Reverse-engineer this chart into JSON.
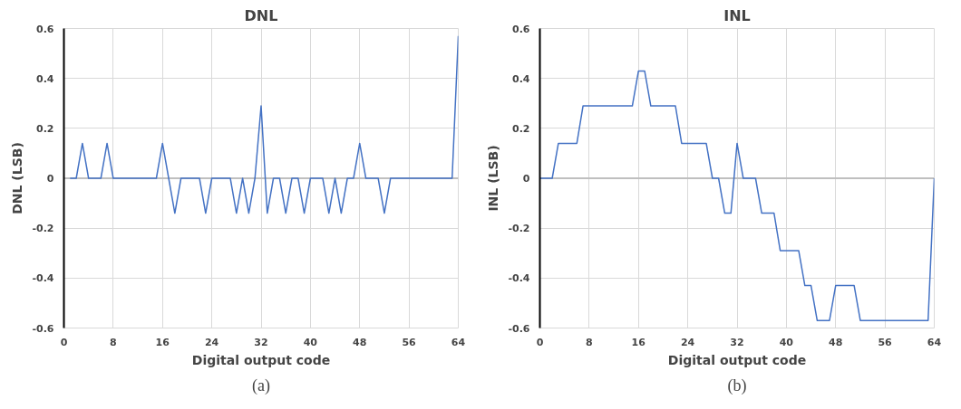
{
  "chart_data": [
    {
      "type": "line",
      "title": "DNL",
      "xlabel": "Digital output code",
      "ylabel": "DNL (LSB)",
      "annotations": [
        "(a)"
      ],
      "x": [
        1,
        2,
        3,
        4,
        5,
        6,
        7,
        8,
        9,
        10,
        11,
        12,
        13,
        14,
        15,
        16,
        17,
        18,
        19,
        20,
        21,
        22,
        23,
        24,
        25,
        26,
        27,
        28,
        29,
        30,
        31,
        32,
        33,
        34,
        35,
        36,
        37,
        38,
        39,
        40,
        41,
        42,
        43,
        44,
        45,
        46,
        47,
        48,
        49,
        50,
        51,
        52,
        53,
        54,
        55,
        56,
        57,
        58,
        59,
        60,
        61,
        62,
        63,
        64
      ],
      "series": [
        {
          "color": "#4472c4",
          "values": [
            0,
            0,
            0.14,
            0,
            0,
            0,
            0.14,
            0,
            0,
            0,
            0,
            0,
            0,
            0,
            0,
            0.14,
            0,
            -0.14,
            0,
            0,
            0,
            0,
            -0.14,
            0,
            0,
            0,
            0,
            -0.14,
            0,
            -0.14,
            0,
            0.29,
            -0.14,
            0,
            0,
            -0.14,
            0,
            0,
            -0.14,
            0,
            0,
            0,
            -0.14,
            0,
            -0.14,
            0,
            0,
            0.14,
            0,
            0,
            0,
            -0.14,
            0,
            0,
            0,
            0,
            0,
            0,
            0,
            0,
            0,
            0,
            0,
            0.57
          ]
        }
      ],
      "xlim": [
        0,
        64
      ],
      "xticks": [
        0,
        8,
        16,
        24,
        32,
        40,
        48,
        56,
        64
      ],
      "ylim": [
        -0.6,
        0.6
      ],
      "yticks": [
        -0.6,
        -0.4,
        -0.2,
        0,
        0.2,
        0.4,
        0.6
      ],
      "ref_lines": [
        {
          "axis": "y",
          "value": 0,
          "color": "#bfbfbf"
        }
      ],
      "grid": true,
      "marker": "none",
      "line_style": "solid"
    },
    {
      "type": "line",
      "title": "INL",
      "xlabel": "Digital output code",
      "ylabel": "INL (LSB)",
      "annotations": [
        "(b)"
      ],
      "x": [
        0,
        1,
        2,
        3,
        4,
        5,
        6,
        7,
        8,
        9,
        10,
        11,
        12,
        13,
        14,
        15,
        16,
        17,
        18,
        19,
        20,
        21,
        22,
        23,
        24,
        25,
        26,
        27,
        28,
        29,
        30,
        31,
        32,
        33,
        34,
        35,
        36,
        37,
        38,
        39,
        40,
        41,
        42,
        43,
        44,
        45,
        46,
        47,
        48,
        49,
        50,
        51,
        52,
        53,
        54,
        55,
        56,
        57,
        58,
        59,
        60,
        61,
        62,
        63,
        64
      ],
      "series": [
        {
          "color": "#4472c4",
          "values": [
            0,
            0,
            0,
            0.14,
            0.14,
            0.14,
            0.14,
            0.29,
            0.29,
            0.29,
            0.29,
            0.29,
            0.29,
            0.29,
            0.29,
            0.29,
            0.43,
            0.43,
            0.29,
            0.29,
            0.29,
            0.29,
            0.29,
            0.14,
            0.14,
            0.14,
            0.14,
            0.14,
            0,
            0,
            -0.14,
            -0.14,
            0.14,
            0,
            0,
            0,
            -0.14,
            -0.14,
            -0.14,
            -0.29,
            -0.29,
            -0.29,
            -0.29,
            -0.43,
            -0.43,
            -0.57,
            -0.57,
            -0.57,
            -0.43,
            -0.43,
            -0.43,
            -0.43,
            -0.57,
            -0.57,
            -0.57,
            -0.57,
            -0.57,
            -0.57,
            -0.57,
            -0.57,
            -0.57,
            -0.57,
            -0.57,
            -0.57,
            0
          ]
        }
      ],
      "xlim": [
        0,
        64
      ],
      "xticks": [
        0,
        8,
        16,
        24,
        32,
        40,
        48,
        56,
        64
      ],
      "ylim": [
        -0.6,
        0.6
      ],
      "yticks": [
        -0.6,
        -0.4,
        -0.2,
        0,
        0.2,
        0.4,
        0.6
      ],
      "ref_lines": [
        {
          "axis": "y",
          "value": 0,
          "color": "#bfbfbf"
        }
      ],
      "grid": true,
      "marker": "none",
      "line_style": "solid"
    }
  ]
}
